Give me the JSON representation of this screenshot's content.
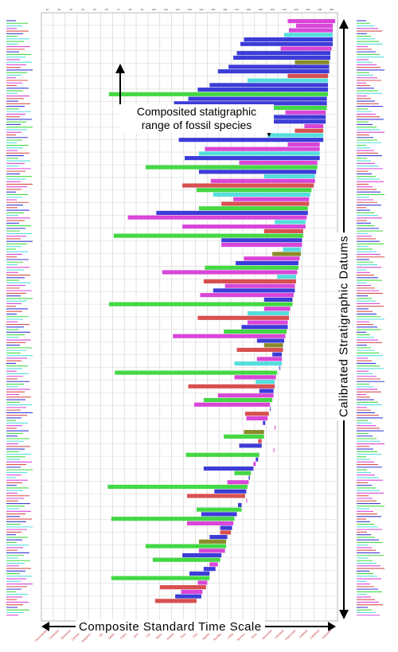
{
  "chart_data": {
    "type": "bar",
    "orientation": "horizontal-range",
    "title": "",
    "xlabel": "",
    "ylabel": "",
    "grid": true,
    "xlim": [
      0,
      25
    ],
    "colors": {
      "blue": "#3c3cd8",
      "magenta": "#d846d8",
      "green": "#44d844",
      "red": "#d85050",
      "cyan": "#55dddd",
      "olive": "#8a8a2a"
    },
    "annotations": {
      "range": "Composited statigraphic range of fossil species",
      "range_lines": [
        "Composited statigraphic",
        "range of fossil species"
      ],
      "time_scale": "Composite Standard Time Scale",
      "datums": "Calibrated Stratigraphic Datums"
    },
    "series": [
      {
        "name": "",
        "color": "blue",
        "ranges": [
          [
            17.1,
            24.6
          ],
          [
            16.8,
            24.6
          ],
          [
            16.5,
            24.4
          ],
          [
            16.2,
            24.4
          ],
          [
            15.8,
            24.3
          ],
          [
            14.9,
            24.3
          ],
          [
            14.2,
            24.2
          ],
          [
            13.2,
            24.2
          ],
          [
            12.4,
            24.1
          ],
          [
            11.2,
            24.1
          ],
          [
            10.5,
            24.0
          ],
          [
            9.2,
            24.0
          ],
          [
            11.6,
            23.8
          ],
          [
            12.1,
            23.5
          ],
          [
            13.3,
            23.2
          ],
          [
            9.7,
            22.5
          ],
          [
            15.2,
            22.0
          ],
          [
            16.4,
            21.7
          ],
          [
            14.5,
            21.4
          ],
          [
            18.8,
            21.2
          ],
          [
            16.9,
            20.8
          ],
          [
            18.2,
            20.5
          ],
          [
            19.5,
            20.3
          ],
          [
            20.1,
            20.1
          ],
          [
            18.4,
            19.6
          ],
          [
            19.3,
            19.2
          ],
          [
            18.7,
            18.9
          ],
          [
            16.7,
            18.6
          ],
          [
            18.1,
            18.3
          ],
          [
            13.7,
            17.9
          ],
          [
            17.5,
            17.6
          ],
          [
            14.6,
            17.3
          ],
          [
            16.6,
            16.9
          ],
          [
            13.5,
            16.5
          ],
          [
            15.1,
            16.1
          ],
          [
            14.2,
            15.7
          ],
          [
            11.9,
            15.2
          ],
          [
            13.7,
            14.7
          ],
          [
            12.5,
            14.2
          ],
          [
            11.3,
            13.5
          ]
        ]
      },
      {
        "name": "",
        "color": "magenta",
        "ranges": [
          [
            20.8,
            24.8
          ],
          [
            20.9,
            24.6
          ],
          [
            21.5,
            24.6
          ],
          [
            20.6,
            24.0
          ],
          [
            22.2,
            23.8
          ],
          [
            20.2,
            24.5
          ],
          [
            20.8,
            23.5
          ],
          [
            13.8,
            23.5
          ],
          [
            16.7,
            23.3
          ],
          [
            14.3,
            23.1
          ],
          [
            16.2,
            22.6
          ],
          [
            7.3,
            22.4
          ],
          [
            11.9,
            22.3
          ],
          [
            15.2,
            22.0
          ],
          [
            17.1,
            21.8
          ],
          [
            10.2,
            21.6
          ],
          [
            15.5,
            21.4
          ],
          [
            13.4,
            21.3
          ],
          [
            18.8,
            21.0
          ],
          [
            17.4,
            20.8
          ],
          [
            11.1,
            20.6
          ],
          [
            18.2,
            20.3
          ],
          [
            16.3,
            19.8
          ],
          [
            14.9,
            19.6
          ],
          [
            12.9,
            19.3
          ],
          [
            17.3,
            19.1
          ],
          [
            19.7,
            18.8
          ],
          [
            19.6,
            18.5
          ],
          [
            17.9,
            18.1
          ],
          [
            15.7,
            17.5
          ],
          [
            17.3,
            17.0
          ],
          [
            12.3,
            16.2
          ],
          [
            13.3,
            15.5
          ],
          [
            14.2,
            14.9
          ],
          [
            13.2,
            14.0
          ],
          [
            11.8,
            13.6
          ]
        ]
      },
      {
        "name": "",
        "color": "green",
        "ranges": [
          [
            5.7,
            24.2
          ],
          [
            8.8,
            23.3
          ],
          [
            13.1,
            22.8
          ],
          [
            8.9,
            24.1
          ],
          [
            13.3,
            22.5
          ],
          [
            6.1,
            22.1
          ],
          [
            13.8,
            21.7
          ],
          [
            5.7,
            21.2
          ],
          [
            15.4,
            20.7
          ],
          [
            6.2,
            19.9
          ],
          [
            13.7,
            19.5
          ],
          [
            15.4,
            18.8
          ],
          [
            12.2,
            18.4
          ],
          [
            16.3,
            17.7
          ],
          [
            5.6,
            17.4
          ],
          [
            13.1,
            16.9
          ],
          [
            5.9,
            16.3
          ],
          [
            8.8,
            15.6
          ],
          [
            9.4,
            15.1
          ],
          [
            5.9,
            14.2
          ]
        ]
      },
      {
        "name": "",
        "color": "red",
        "ranges": [
          [
            20.8,
            24.2
          ],
          [
            21.4,
            23.8
          ],
          [
            11.9,
            23.0
          ],
          [
            15.2,
            22.6
          ],
          [
            18.8,
            22.1
          ],
          [
            13.7,
            21.5
          ],
          [
            13.2,
            20.9
          ],
          [
            16.5,
            20.4
          ],
          [
            12.4,
            19.7
          ],
          [
            17.2,
            19.2
          ],
          [
            18.3,
            18.6
          ],
          [
            12.3,
            17.2
          ],
          [
            15.1,
            16.0
          ],
          [
            10.0,
            13.9
          ],
          [
            9.6,
            13.1
          ]
        ]
      },
      {
        "name": "",
        "color": "cyan",
        "ranges": [
          [
            20.5,
            24.6
          ],
          [
            17.4,
            24.2
          ],
          [
            19.1,
            23.8
          ],
          [
            13.3,
            23.5
          ],
          [
            18.8,
            23.1
          ],
          [
            14.5,
            22.7
          ],
          [
            19.7,
            22.3
          ],
          [
            20.4,
            21.9
          ],
          [
            19.9,
            21.5
          ],
          [
            17.4,
            20.9
          ],
          [
            16.3,
            20.3
          ],
          [
            18.1,
            19.7
          ]
        ]
      },
      {
        "name": "",
        "color": "olive",
        "ranges": [
          [
            21.4,
            24.3
          ],
          [
            19.5,
            21.9
          ],
          [
            18.8,
            20.4
          ],
          [
            17.1,
            18.8
          ],
          [
            13.3,
            15.6
          ]
        ]
      }
    ],
    "ticks": {
      "x": [
        "10",
        "20",
        "30",
        "40",
        "50",
        "60",
        "70",
        "80",
        "90",
        "100",
        "110",
        "120",
        "130",
        "140",
        "150",
        "160",
        "170",
        "180",
        "190",
        "200",
        "210",
        "220",
        "230",
        "240",
        "250"
      ],
      "stages": [
        "Cenomanian",
        "Coniacian",
        "Santonian",
        "Campanian",
        "Maastrichtian",
        "Danian",
        "Selandian",
        "Thanetian",
        "Ypresian",
        "Lutetian",
        "Bartonian",
        "Priabonian",
        "Rupelian",
        "Chattian",
        "Aquitanian",
        "Burdigalian",
        "Langhian",
        "Serravallian",
        "Tortonian",
        "Messinian",
        "Zanclean",
        "Piacenzian",
        "Gelasian",
        "Calabrian",
        "Holocene"
      ]
    },
    "legend": "none"
  }
}
